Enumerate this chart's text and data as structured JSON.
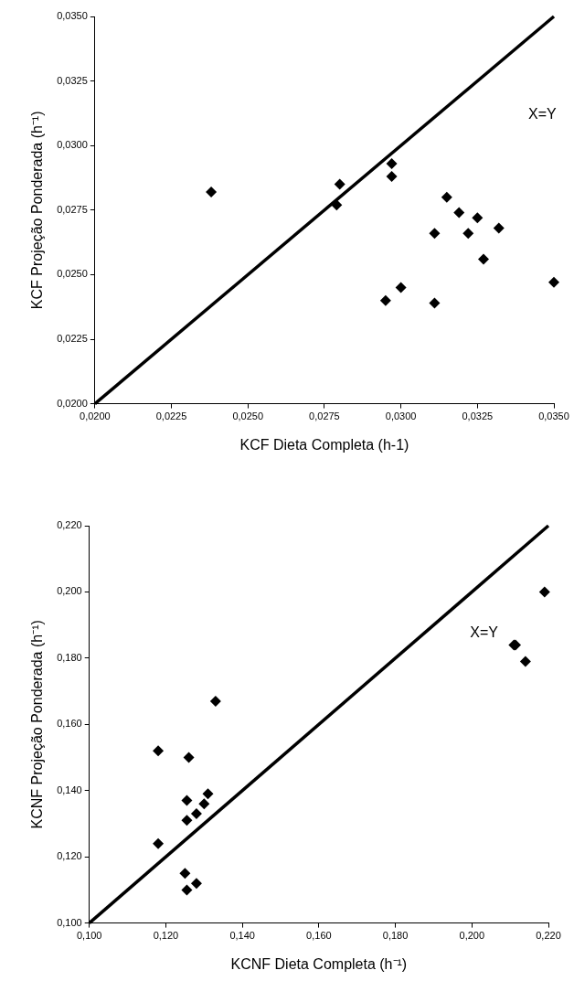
{
  "chart_data": [
    {
      "type": "scatter",
      "xlabel": "KCF Dieta Completa (h-1)",
      "ylabel": "KCF Projeção Ponderada (h⁻¹)",
      "marker": "diamond",
      "grid": false,
      "legend": false,
      "xlim": [
        0.02,
        0.035
      ],
      "xticks": [
        {
          "value": 0.02,
          "label": "0,0200"
        },
        {
          "value": 0.0225,
          "label": "0,0225"
        },
        {
          "value": 0.025,
          "label": "0,0250"
        },
        {
          "value": 0.0275,
          "label": "0,0275"
        },
        {
          "value": 0.03,
          "label": "0,0300"
        },
        {
          "value": 0.0325,
          "label": "0,0325"
        },
        {
          "value": 0.035,
          "label": "0,0350"
        }
      ],
      "ylim": [
        0.02,
        0.035
      ],
      "yticks": [
        {
          "value": 0.02,
          "label": "0,0200"
        },
        {
          "value": 0.0225,
          "label": "0,0225"
        },
        {
          "value": 0.025,
          "label": "0,0250"
        },
        {
          "value": 0.0275,
          "label": "0,0275"
        },
        {
          "value": 0.03,
          "label": "0,0300"
        },
        {
          "value": 0.0325,
          "label": "0,0325"
        },
        {
          "value": 0.035,
          "label": "0,0350"
        }
      ],
      "series": [
        {
          "color": "#000000",
          "x": [
            0.0238,
            0.028,
            0.0279,
            0.0297,
            0.0297,
            0.0315,
            0.0319,
            0.0325,
            0.0311,
            0.0322,
            0.0332,
            0.0327,
            0.03,
            0.0295,
            0.0311,
            0.035
          ],
          "values": [
            0.0282,
            0.0285,
            0.0277,
            0.0293,
            0.0288,
            0.028,
            0.0274,
            0.0272,
            0.0266,
            0.0266,
            0.0268,
            0.0256,
            0.0245,
            0.024,
            0.0239,
            0.0247
          ]
        },
        {
          "type": "line",
          "color": "#000000",
          "marker": "none",
          "x": [
            0.02,
            0.035
          ],
          "values": [
            0.02,
            0.035
          ]
        }
      ],
      "annotations": [
        "X=Y"
      ]
    },
    {
      "type": "scatter",
      "xlabel": "KCNF Dieta Completa (h⁻¹)",
      "ylabel": "KCNF Projeção Ponderada (h⁻¹)",
      "marker": "diamond",
      "grid": false,
      "legend": false,
      "xlim": [
        0.1,
        0.22
      ],
      "xticks": [
        {
          "value": 0.1,
          "label": "0,100"
        },
        {
          "value": 0.12,
          "label": "0,120"
        },
        {
          "value": 0.14,
          "label": "0,140"
        },
        {
          "value": 0.16,
          "label": "0,160"
        },
        {
          "value": 0.18,
          "label": "0,180"
        },
        {
          "value": 0.2,
          "label": "0,200"
        },
        {
          "value": 0.22,
          "label": "0,220"
        }
      ],
      "ylim": [
        0.1,
        0.22
      ],
      "yticks": [
        {
          "value": 0.1,
          "label": "0,100"
        },
        {
          "value": 0.12,
          "label": "0,120"
        },
        {
          "value": 0.14,
          "label": "0,140"
        },
        {
          "value": 0.16,
          "label": "0,160"
        },
        {
          "value": 0.18,
          "label": "0,180"
        },
        {
          "value": 0.2,
          "label": "0,200"
        },
        {
          "value": 0.22,
          "label": "0,220"
        }
      ],
      "series": [
        {
          "color": "#000000",
          "x": [
            0.118,
            0.133,
            0.126,
            0.1255,
            0.131,
            0.13,
            0.128,
            0.1255,
            0.118,
            0.125,
            0.128,
            0.1255,
            0.211,
            0.2114,
            0.214,
            0.219
          ],
          "values": [
            0.152,
            0.167,
            0.15,
            0.137,
            0.139,
            0.136,
            0.133,
            0.131,
            0.124,
            0.115,
            0.112,
            0.11,
            0.184,
            0.184,
            0.179,
            0.2
          ]
        },
        {
          "type": "line",
          "color": "#000000",
          "marker": "none",
          "x": [
            0.1,
            0.22
          ],
          "values": [
            0.1,
            0.22
          ]
        }
      ],
      "annotations": [
        "X=Y"
      ]
    }
  ]
}
